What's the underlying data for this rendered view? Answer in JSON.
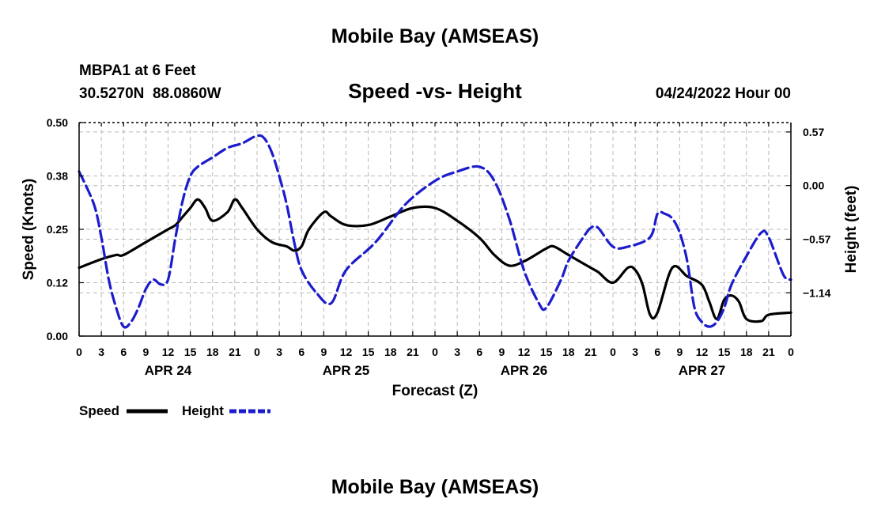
{
  "page": {
    "bottom_title": "Mobile Bay (AMSEAS)"
  },
  "chart_data": {
    "type": "line",
    "title": "Mobile Bay (AMSEAS)",
    "station": "MBPA1 at 6 Feet",
    "coords": "30.5270N  88.0860W",
    "subtitle": "Speed -vs- Height",
    "run_time": "04/24/2022 Hour 00",
    "xlabel": "Forecast (Z)",
    "ylabel": "Speed (Knots)",
    "y2label": "Height (feet)",
    "xlim": [
      0,
      96
    ],
    "ylim": [
      0,
      0.5
    ],
    "y2lim": [
      -1.6,
      0.67
    ],
    "x_tick_hours": [
      0,
      3,
      6,
      9,
      12,
      15,
      18,
      21,
      24,
      27,
      30,
      33,
      36,
      39,
      42,
      45,
      48,
      51,
      54,
      57,
      60,
      63,
      66,
      69,
      72,
      75,
      78,
      81,
      84,
      87,
      90,
      93,
      96
    ],
    "x_tick_labels": [
      "0",
      "3",
      "6",
      "9",
      "12",
      "15",
      "18",
      "21",
      "0",
      "3",
      "6",
      "9",
      "12",
      "15",
      "18",
      "21",
      "0",
      "3",
      "6",
      "9",
      "12",
      "15",
      "18",
      "21",
      "0",
      "3",
      "6",
      "9",
      "12",
      "15",
      "18",
      "21",
      "0"
    ],
    "date_labels": [
      {
        "hour": 12,
        "label": "APR 24"
      },
      {
        "hour": 36,
        "label": "APR 25"
      },
      {
        "hour": 60,
        "label": "APR 26"
      },
      {
        "hour": 84,
        "label": "APR 27"
      }
    ],
    "y_ticks": [
      0.0,
      0.125,
      0.25,
      0.375,
      0.5
    ],
    "y_tick_labels": [
      "0.00",
      "0.12",
      "0.25",
      "0.38",
      "0.50"
    ],
    "y2_ticks": [
      0.57,
      0.0,
      -0.57,
      -1.14
    ],
    "y2_tick_labels": [
      "0.57",
      "0.00",
      "−0.57",
      "−1.14"
    ],
    "grid": true,
    "legend_position": "bottom-left",
    "series": [
      {
        "name": "Speed",
        "axis": "left",
        "color": "#000000",
        "style": "solid",
        "x": [
          0,
          3,
          5,
          6,
          9,
          12,
          13,
          14,
          15,
          16,
          17,
          18,
          20,
          21,
          22,
          24,
          26,
          28,
          29,
          30,
          31,
          33,
          34,
          36,
          39,
          42,
          45,
          48,
          51,
          54,
          56,
          58,
          60,
          62,
          63,
          64,
          66,
          69,
          70,
          72,
          74,
          75,
          76,
          77,
          78,
          80,
          82,
          84,
          85,
          86,
          87,
          88,
          89,
          90,
          92,
          93,
          96
        ],
        "values": [
          0.16,
          0.18,
          0.19,
          0.19,
          0.22,
          0.25,
          0.26,
          0.28,
          0.3,
          0.32,
          0.3,
          0.27,
          0.29,
          0.32,
          0.3,
          0.25,
          0.22,
          0.21,
          0.2,
          0.21,
          0.25,
          0.29,
          0.28,
          0.26,
          0.26,
          0.28,
          0.3,
          0.3,
          0.27,
          0.23,
          0.19,
          0.165,
          0.175,
          0.195,
          0.205,
          0.21,
          0.19,
          0.16,
          0.15,
          0.125,
          0.16,
          0.155,
          0.12,
          0.05,
          0.055,
          0.16,
          0.14,
          0.12,
          0.08,
          0.04,
          0.085,
          0.095,
          0.08,
          0.04,
          0.035,
          0.05,
          0.055
        ]
      },
      {
        "name": "Height",
        "axis": "right",
        "color": "#1c1ccc",
        "style": "dashed",
        "x": [
          0,
          2,
          3,
          4,
          5,
          6,
          7,
          8,
          9,
          10,
          11,
          12,
          13,
          14,
          15,
          16,
          18,
          20,
          22,
          24,
          25,
          26,
          27,
          28,
          29,
          30,
          32,
          34,
          36,
          40,
          44,
          48,
          51,
          54,
          56,
          58,
          60,
          62,
          63,
          65,
          66,
          68,
          69,
          70,
          72,
          74,
          77,
          78,
          79,
          80,
          81,
          82,
          83,
          84,
          85,
          86,
          87,
          88,
          90,
          92,
          93,
          95,
          96
        ],
        "values": [
          0.15,
          -0.2,
          -0.55,
          -1.0,
          -1.3,
          -1.5,
          -1.45,
          -1.3,
          -1.1,
          -1.0,
          -1.05,
          -1.0,
          -0.55,
          -0.15,
          0.1,
          0.2,
          0.3,
          0.4,
          0.45,
          0.53,
          0.5,
          0.35,
          0.1,
          -0.2,
          -0.6,
          -0.9,
          -1.14,
          -1.25,
          -0.9,
          -0.6,
          -0.2,
          0.05,
          0.15,
          0.2,
          0.05,
          -0.35,
          -0.9,
          -1.25,
          -1.3,
          -1.0,
          -0.8,
          -0.55,
          -0.45,
          -0.45,
          -0.65,
          -0.65,
          -0.55,
          -0.3,
          -0.3,
          -0.35,
          -0.5,
          -0.8,
          -1.3,
          -1.45,
          -1.5,
          -1.45,
          -1.3,
          -1.05,
          -0.75,
          -0.5,
          -0.55,
          -0.95,
          -1.0
        ]
      }
    ]
  }
}
